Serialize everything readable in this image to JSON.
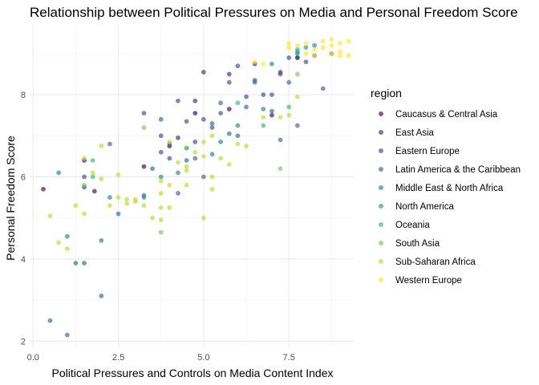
{
  "chart_data": {
    "type": "scatter",
    "title": "Relationship between Political Pressures on Media and Personal Freedom Score",
    "xlabel": "Political Pressures and Controls on Media Content Index",
    "ylabel": "Personal Freedom Score",
    "xlim": [
      -0.1,
      9.4
    ],
    "ylim": [
      1.85,
      9.7
    ],
    "x_ticks": [
      0.0,
      2.5,
      5.0,
      7.5
    ],
    "x_tick_labels": [
      "0.0",
      "2.5",
      "5.0",
      "7.5"
    ],
    "y_ticks": [
      2,
      4,
      6,
      8
    ],
    "y_tick_labels": [
      "2",
      "4",
      "6",
      "8"
    ],
    "grid": true,
    "legend": {
      "title": "region",
      "position": "right"
    },
    "series": [
      {
        "name": "Caucasus & Central Asia",
        "color": "#440154",
        "points": [
          [
            0.3,
            5.7
          ],
          [
            1.5,
            6.4
          ],
          [
            1.8,
            5.65
          ],
          [
            3.25,
            6.25
          ],
          [
            4.0,
            6.75
          ],
          [
            4.75,
            7.55
          ],
          [
            5.75,
            7.65
          ],
          [
            7.0,
            7.5
          ],
          [
            7.75,
            8.9
          ]
        ]
      },
      {
        "name": "East Asia",
        "color": "#482878",
        "points": [
          [
            1.5,
            5.75
          ],
          [
            4.25,
            6.95
          ],
          [
            4.75,
            7.85
          ],
          [
            5.0,
            8.55
          ],
          [
            5.75,
            8.5
          ],
          [
            6.5,
            8.75
          ],
          [
            7.25,
            8.55
          ],
          [
            8.25,
            8.95
          ],
          [
            8.75,
            9.0
          ]
        ]
      },
      {
        "name": "Eastern Europe",
        "color": "#3E4A89",
        "points": [
          [
            1.5,
            6.0
          ],
          [
            3.25,
            7.55
          ],
          [
            3.75,
            7.0
          ],
          [
            3.75,
            6.6
          ],
          [
            4.0,
            6.45
          ],
          [
            4.25,
            7.85
          ],
          [
            4.5,
            7.35
          ],
          [
            4.75,
            6.85
          ],
          [
            5.0,
            7.4
          ],
          [
            5.25,
            7.2
          ],
          [
            5.5,
            7.55
          ],
          [
            5.75,
            8.3
          ],
          [
            6.0,
            8.7
          ],
          [
            6.25,
            7.95
          ],
          [
            6.5,
            8.35
          ],
          [
            6.75,
            8.0
          ],
          [
            7.0,
            8.0
          ],
          [
            7.25,
            8.5
          ],
          [
            7.5,
            8.9
          ],
          [
            7.75,
            8.9
          ],
          [
            8.0,
            8.8
          ]
        ]
      },
      {
        "name": "Latin America & the Caribbean",
        "color": "#31688E",
        "points": [
          [
            0.5,
            2.5
          ],
          [
            1.0,
            2.15
          ],
          [
            1.25,
            3.9
          ],
          [
            1.5,
            3.9
          ],
          [
            2.0,
            3.1
          ],
          [
            2.25,
            6.8
          ],
          [
            2.5,
            5.1
          ],
          [
            3.25,
            5.55
          ],
          [
            3.5,
            6.2
          ],
          [
            3.75,
            7.4
          ],
          [
            4.0,
            6.8
          ],
          [
            4.25,
            5.6
          ],
          [
            4.5,
            6.4
          ],
          [
            4.75,
            6.45
          ],
          [
            5.0,
            6.0
          ],
          [
            5.25,
            7.3
          ],
          [
            5.5,
            7.8
          ],
          [
            5.75,
            7.05
          ],
          [
            6.0,
            7.0
          ],
          [
            6.25,
            7.7
          ],
          [
            6.5,
            8.3
          ],
          [
            7.0,
            7.6
          ],
          [
            7.25,
            6.9
          ],
          [
            7.5,
            8.3
          ],
          [
            7.75,
            7.25
          ],
          [
            8.5,
            8.15
          ]
        ]
      },
      {
        "name": "Middle East & North Africa",
        "color": "#26828E",
        "points": [
          [
            0.75,
            6.1
          ],
          [
            1.0,
            4.55
          ],
          [
            2.0,
            4.45
          ],
          [
            2.25,
            5.5
          ],
          [
            3.25,
            5.5
          ],
          [
            3.75,
            6.0
          ],
          [
            4.25,
            6.1
          ],
          [
            4.5,
            6.7
          ],
          [
            5.25,
            6.55
          ],
          [
            5.5,
            6.85
          ],
          [
            6.0,
            7.25
          ],
          [
            6.75,
            7.65
          ],
          [
            7.0,
            8.75
          ],
          [
            7.75,
            9.0
          ],
          [
            8.25,
            9.2
          ]
        ]
      },
      {
        "name": "North America",
        "color": "#1F9E89",
        "points": [
          [
            7.75,
            9.05
          ],
          [
            8.0,
            9.15
          ]
        ]
      },
      {
        "name": "Oceania",
        "color": "#35B779",
        "points": [
          [
            1.75,
            6.0
          ],
          [
            1.75,
            6.4
          ],
          [
            6.0,
            7.8
          ],
          [
            6.75,
            7.25
          ],
          [
            7.5,
            7.7
          ],
          [
            7.75,
            9.1
          ]
        ]
      },
      {
        "name": "South Asia",
        "color": "#6DCD59",
        "points": [
          [
            1.5,
            5.8
          ],
          [
            3.25,
            7.2
          ],
          [
            3.75,
            4.65
          ],
          [
            4.5,
            6.7
          ],
          [
            7.25,
            6.2
          ],
          [
            7.75,
            8.5
          ]
        ]
      },
      {
        "name": "Sub-Saharan Africa",
        "color": "#B4DE2C",
        "points": [
          [
            0.5,
            5.05
          ],
          [
            0.75,
            4.4
          ],
          [
            1.0,
            4.25
          ],
          [
            1.25,
            5.3
          ],
          [
            1.5,
            5.1
          ],
          [
            1.5,
            6.45
          ],
          [
            1.75,
            6.1
          ],
          [
            2.0,
            6.75
          ],
          [
            2.0,
            5.95
          ],
          [
            2.25,
            5.3
          ],
          [
            2.5,
            5.5
          ],
          [
            2.5,
            6.05
          ],
          [
            2.75,
            5.35
          ],
          [
            2.75,
            5.45
          ],
          [
            3.0,
            5.4
          ],
          [
            3.0,
            5.45
          ],
          [
            3.25,
            5.3
          ],
          [
            3.5,
            5.0
          ],
          [
            3.75,
            5.25
          ],
          [
            3.75,
            4.95
          ],
          [
            3.75,
            5.6
          ],
          [
            3.75,
            5.9
          ],
          [
            4.0,
            6.85
          ],
          [
            4.0,
            5.25
          ],
          [
            4.0,
            5.8
          ],
          [
            4.25,
            6.35
          ],
          [
            4.5,
            6.25
          ],
          [
            4.5,
            5.8
          ],
          [
            4.5,
            6.15
          ],
          [
            4.75,
            6.6
          ],
          [
            5.0,
            6.5
          ],
          [
            5.0,
            6.85
          ],
          [
            5.0,
            5.0
          ],
          [
            5.25,
            6.0
          ],
          [
            5.25,
            5.7
          ],
          [
            5.25,
            7.0
          ],
          [
            5.5,
            6.45
          ],
          [
            5.75,
            6.3
          ],
          [
            6.0,
            6.8
          ],
          [
            6.25,
            6.75
          ],
          [
            6.75,
            7.45
          ],
          [
            7.25,
            7.45
          ],
          [
            7.5,
            7.5
          ],
          [
            7.75,
            7.95
          ]
        ]
      },
      {
        "name": "Western Europe",
        "color": "#FDE725",
        "points": [
          [
            6.5,
            8.8
          ],
          [
            6.75,
            8.75
          ],
          [
            7.5,
            9.25
          ],
          [
            7.75,
            9.2
          ],
          [
            8.0,
            9.0
          ],
          [
            8.0,
            9.25
          ],
          [
            8.25,
            9.1
          ],
          [
            8.5,
            9.3
          ],
          [
            8.5,
            9.15
          ],
          [
            8.75,
            9.35
          ],
          [
            8.75,
            9.2
          ],
          [
            8.75,
            9.0
          ],
          [
            9.0,
            9.25
          ],
          [
            9.0,
            9.05
          ],
          [
            9.0,
            8.95
          ],
          [
            9.25,
            9.3
          ],
          [
            9.25,
            8.95
          ],
          [
            7.5,
            9.15
          ],
          [
            8.25,
            8.95
          ]
        ]
      }
    ]
  }
}
